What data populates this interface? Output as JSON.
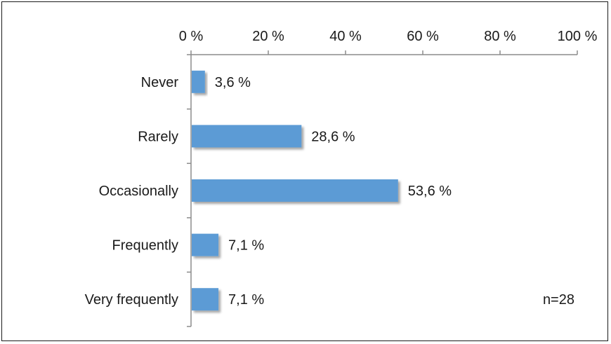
{
  "chart_data": {
    "type": "bar",
    "orientation": "horizontal",
    "categories": [
      "Never",
      "Rarely",
      "Occasionally",
      "Frequently",
      "Very frequently"
    ],
    "values": [
      3.6,
      28.6,
      53.6,
      7.1,
      7.1
    ],
    "data_labels": [
      "3,6 %",
      "28,6 %",
      "53,6 %",
      "7,1 %",
      "7,1 %"
    ],
    "x_ticks": [
      0,
      20,
      40,
      60,
      80,
      100
    ],
    "x_tick_labels": [
      "0 %",
      "20 %",
      "40 %",
      "60 %",
      "80 %",
      "100 %"
    ],
    "xlim": [
      0,
      100
    ],
    "x_axis_position": "top",
    "grid": false,
    "legend": "none",
    "annotation": "n=28",
    "bar_color": "#5b9bd5"
  }
}
